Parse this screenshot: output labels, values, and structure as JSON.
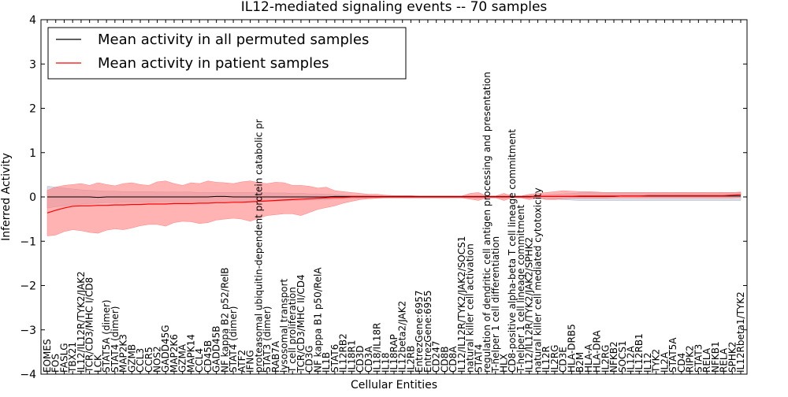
{
  "chart_data": {
    "type": "line",
    "title": "IL12-mediated signaling events -- 70 samples",
    "xlabel": "Cellular Entities",
    "ylabel": "Inferred Activity",
    "ylim": [
      -4,
      4
    ],
    "yticks": [
      -4,
      -3,
      -2,
      -1,
      0,
      1,
      2,
      3,
      4
    ],
    "grid": false,
    "legend_position": "top-left",
    "categories": [
      "EOMES",
      "FOS",
      "FASLG",
      "TBX21",
      "IL12/IL12R/TYK2/JAK2",
      "TCR/CD3/MHC I/CD8",
      "LCK",
      "STAT5A (dimer)",
      "STAT4 (dimer)",
      "MAP2K3",
      "GZMB",
      "CCL3",
      "CCR5",
      "NOS2",
      "GADD45G",
      "MAP2K6",
      "GZMA",
      "MAPK14",
      "CCL4",
      "CD45B",
      "GADD45B",
      "NF kappa B2 p52/RelB",
      "STAT4 (dimer)",
      "ATF2",
      "IFNG",
      "proteasomal ubiquitin-dependent protein catabolic pr",
      "STAT3 (dimer)",
      "RAB7A",
      "lysosomal transport",
      "T cell proliferation",
      "TCR/CD3/MHC II/CD4",
      "CD3G",
      "NF kappa B1 p50/RelA",
      "IL1B",
      "STAT6",
      "IL12RB2",
      "IL18R1",
      "CD3D",
      "CD3A",
      "IL18/IL18R",
      "IL18",
      "IL18RAP",
      "IL12beta2/JAK2",
      "IL2RB",
      "EntrezGene:6957",
      "EntrezGene:6955",
      "CD247",
      "CD8B",
      "CD8A",
      "IL12/IL12R/TYK2/JAK2/SOCS1",
      "natural killer cell activation",
      "STAT4",
      "regulation of dendritic cell antigen processing and presentation",
      "T-helper 1 cell differentiation",
      "HLX",
      "CD8-positive alpha-beta T cell lineage commitment",
      "T-helper 1 cell lineage commitment",
      "IL12/IL12R/TYK2/JAK2/SPHK2",
      "natural killer cell mediated cytotoxicity",
      "IL12R",
      "IL2RG",
      "CD3E",
      "HLA-DRB5",
      "B2M",
      "HLA-A",
      "HLA-DRA",
      "IL2RG",
      "NFKB2",
      "SOCS1",
      "IL12A",
      "IL12RB1",
      "IL12",
      "TYK2",
      "IL2A",
      "STAT5A",
      "CD4",
      "RIPK2",
      "STAT3",
      "RELA",
      "NFKB1",
      "RELA",
      "SPHK2",
      "IL12Rbeta1/TYK2"
    ],
    "series": [
      {
        "name": "Mean activity in all permuted samples",
        "color": "#000000",
        "values": [
          0.0,
          0.0,
          0.0,
          0.0,
          0.0,
          0.0,
          -0.01,
          0.0,
          0.0,
          0.0,
          0.0,
          0.0,
          0.0,
          0.0,
          0.0,
          0.0,
          0.0,
          0.0,
          0.0,
          0.0,
          0.01,
          0.01,
          0.0,
          0.0,
          0.0,
          0.0,
          0.0,
          0.0,
          0.0,
          0.0,
          0.0,
          0.0,
          0.0,
          0.0,
          0.01,
          0.01,
          0.01,
          0.01,
          0.01,
          0.01,
          0.01,
          0.01,
          0.01,
          0.01,
          0.01,
          0.01,
          0.01,
          0.01,
          0.01,
          0.01,
          0.01,
          0.01,
          0.01,
          0.01,
          0.01,
          0.01,
          0.01,
          0.01,
          0.01,
          0.01,
          0.01,
          0.01,
          0.01,
          0.01,
          0.01,
          0.01,
          0.01,
          0.01,
          0.02,
          0.02,
          0.02,
          0.02,
          0.02,
          0.02,
          0.02,
          0.02,
          0.02,
          0.02,
          0.02,
          0.02,
          0.02,
          0.02,
          0.02
        ]
      },
      {
        "name": "Mean activity in patient samples",
        "color": "#ff0000",
        "values": [
          -0.36,
          -0.3,
          -0.25,
          -0.21,
          -0.2,
          -0.2,
          -0.19,
          -0.19,
          -0.18,
          -0.18,
          -0.17,
          -0.17,
          -0.16,
          -0.16,
          -0.16,
          -0.15,
          -0.15,
          -0.15,
          -0.14,
          -0.14,
          -0.13,
          -0.13,
          -0.12,
          -0.12,
          -0.11,
          -0.1,
          -0.09,
          -0.08,
          -0.07,
          -0.06,
          -0.05,
          -0.04,
          -0.03,
          -0.02,
          -0.01,
          -0.01,
          0.0,
          0.0,
          0.0,
          0.0,
          0.0,
          0.0,
          0.0,
          0.0,
          0.0,
          0.0,
          0.0,
          0.0,
          0.0,
          0.0,
          0.0,
          0.0,
          0.0,
          0.0,
          0.0,
          0.0,
          0.0,
          0.0,
          0.01,
          0.01,
          0.01,
          0.01,
          0.01,
          0.02,
          0.02,
          0.02,
          0.02,
          0.02,
          0.02,
          0.02,
          0.02,
          0.03,
          0.03,
          0.03,
          0.03,
          0.03,
          0.03,
          0.03,
          0.03,
          0.03,
          0.03,
          0.04,
          0.05
        ]
      }
    ],
    "bands": [
      {
        "series": "Mean activity in all permuted samples",
        "color": "#b0b0c8",
        "lower": [
          -0.25,
          -0.22,
          -0.2,
          -0.18,
          -0.16,
          -0.15,
          -0.14,
          -0.13,
          -0.13,
          -0.12,
          -0.12,
          -0.12,
          -0.12,
          -0.11,
          -0.11,
          -0.11,
          -0.11,
          -0.11,
          -0.1,
          -0.1,
          -0.1,
          -0.1,
          -0.1,
          -0.1,
          -0.1,
          -0.1,
          -0.09,
          -0.09,
          -0.09,
          -0.08,
          -0.08,
          -0.07,
          -0.07,
          -0.06,
          -0.05,
          -0.04,
          -0.03,
          -0.03,
          -0.03,
          -0.02,
          -0.02,
          -0.02,
          -0.02,
          -0.02,
          -0.02,
          -0.02,
          -0.02,
          -0.02,
          -0.02,
          -0.02,
          -0.02,
          -0.02,
          -0.02,
          -0.02,
          -0.02,
          -0.02,
          -0.02,
          -0.03,
          -0.03,
          -0.04,
          -0.05,
          -0.06,
          -0.07,
          -0.08,
          -0.08,
          -0.08,
          -0.08,
          -0.08,
          -0.08,
          -0.08,
          -0.08,
          -0.08,
          -0.08,
          -0.08,
          -0.08,
          -0.08,
          -0.08,
          -0.08,
          -0.08,
          -0.08,
          -0.08,
          -0.08,
          -0.08
        ],
        "upper": [
          0.24,
          0.22,
          0.2,
          0.18,
          0.16,
          0.15,
          0.14,
          0.13,
          0.13,
          0.12,
          0.12,
          0.12,
          0.12,
          0.11,
          0.11,
          0.11,
          0.11,
          0.11,
          0.1,
          0.1,
          0.1,
          0.1,
          0.1,
          0.1,
          0.1,
          0.1,
          0.09,
          0.09,
          0.09,
          0.08,
          0.08,
          0.07,
          0.07,
          0.06,
          0.05,
          0.04,
          0.03,
          0.03,
          0.03,
          0.02,
          0.02,
          0.02,
          0.02,
          0.02,
          0.02,
          0.02,
          0.02,
          0.02,
          0.02,
          0.02,
          0.02,
          0.02,
          0.02,
          0.02,
          0.02,
          0.02,
          0.02,
          0.03,
          0.04,
          0.05,
          0.06,
          0.07,
          0.08,
          0.09,
          0.1,
          0.1,
          0.1,
          0.1,
          0.1,
          0.1,
          0.1,
          0.1,
          0.1,
          0.1,
          0.1,
          0.1,
          0.1,
          0.1,
          0.1,
          0.1,
          0.1,
          0.1,
          0.1
        ]
      },
      {
        "series": "Mean activity in patient samples",
        "color": "#ff8080",
        "lower": [
          -0.88,
          -0.86,
          -0.78,
          -0.74,
          -0.76,
          -0.8,
          -0.82,
          -0.75,
          -0.72,
          -0.74,
          -0.7,
          -0.65,
          -0.62,
          -0.62,
          -0.66,
          -0.58,
          -0.55,
          -0.56,
          -0.6,
          -0.58,
          -0.52,
          -0.5,
          -0.48,
          -0.5,
          -0.55,
          -0.48,
          -0.42,
          -0.4,
          -0.38,
          -0.38,
          -0.42,
          -0.35,
          -0.28,
          -0.24,
          -0.2,
          -0.14,
          -0.1,
          -0.06,
          -0.04,
          -0.03,
          -0.02,
          -0.02,
          -0.02,
          -0.02,
          -0.02,
          -0.02,
          -0.02,
          -0.02,
          -0.02,
          -0.02,
          -0.05,
          -0.08,
          -0.02,
          -0.02,
          -0.08,
          -0.02,
          -0.02,
          -0.06,
          -0.02,
          -0.06,
          -0.06,
          -0.04,
          -0.03,
          -0.03,
          -0.03,
          -0.03,
          -0.03,
          -0.02,
          -0.02,
          -0.02,
          -0.02,
          -0.02,
          -0.02,
          -0.02,
          -0.02,
          -0.02,
          -0.02,
          -0.02,
          -0.02,
          -0.02,
          -0.02,
          -0.02,
          -0.01
        ],
        "upper": [
          0.15,
          0.22,
          0.26,
          0.28,
          0.3,
          0.26,
          0.32,
          0.28,
          0.25,
          0.3,
          0.32,
          0.28,
          0.26,
          0.34,
          0.36,
          0.3,
          0.26,
          0.32,
          0.3,
          0.36,
          0.33,
          0.32,
          0.3,
          0.34,
          0.36,
          0.32,
          0.3,
          0.33,
          0.32,
          0.26,
          0.26,
          0.24,
          0.2,
          0.22,
          0.14,
          0.12,
          0.1,
          0.08,
          0.06,
          0.06,
          0.04,
          0.03,
          0.03,
          0.03,
          0.02,
          0.02,
          0.02,
          0.02,
          0.02,
          0.02,
          0.08,
          0.1,
          0.02,
          0.02,
          0.08,
          0.02,
          0.02,
          0.06,
          0.08,
          0.1,
          0.12,
          0.14,
          0.13,
          0.12,
          0.12,
          0.11,
          0.1,
          0.1,
          0.1,
          0.1,
          0.1,
          0.1,
          0.1,
          0.1,
          0.1,
          0.1,
          0.1,
          0.1,
          0.1,
          0.1,
          0.1,
          0.1,
          0.11
        ]
      }
    ]
  }
}
